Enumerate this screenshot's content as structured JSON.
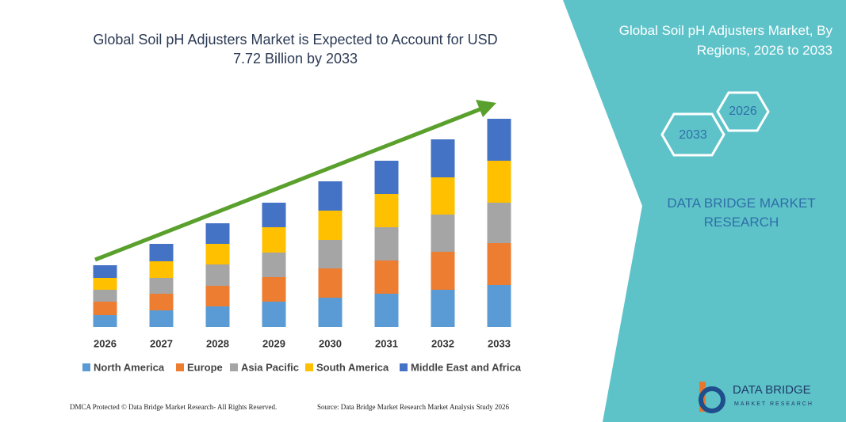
{
  "chart_data": {
    "type": "bar",
    "stacked": true,
    "title": "Global Soil pH Adjusters Market is Expected to Account for USD 7.72 Billion by 2033",
    "categories": [
      "2026",
      "2027",
      "2028",
      "2029",
      "2030",
      "2031",
      "2032",
      "2033"
    ],
    "series": [
      {
        "name": "North America",
        "color": "#5b9bd5",
        "values": [
          15,
          21,
          26,
          32,
          37,
          42,
          47,
          53
        ]
      },
      {
        "name": "Europe",
        "color": "#ed7d31",
        "values": [
          17,
          21,
          26,
          31,
          37,
          42,
          48,
          53
        ]
      },
      {
        "name": "Asia Pacific",
        "color": "#a5a5a5",
        "values": [
          15,
          20,
          27,
          31,
          36,
          42,
          47,
          51
        ]
      },
      {
        "name": "South America",
        "color": "#ffc000",
        "values": [
          15,
          21,
          26,
          32,
          37,
          42,
          47,
          53
        ]
      },
      {
        "name": "Middle East and Africa",
        "color": "#4472c4",
        "values": [
          16,
          22,
          26,
          31,
          37,
          42,
          48,
          53
        ]
      }
    ]
  },
  "panel": {
    "title": "Global Soil pH Adjusters Market, By Regions, 2026 to 2033",
    "hex_start": "2026",
    "hex_end": "2033",
    "brand": "DATA BRIDGE MARKET RESEARCH",
    "logo_name": "DATA BRIDGE",
    "logo_sub": "MARKET RESEARCH"
  },
  "footer": {
    "left": "DMCA Protected © Data Bridge Market Research- All Rights Reserved.",
    "right": "Source: Data Bridge Market Research Market Analysis Study 2026"
  }
}
